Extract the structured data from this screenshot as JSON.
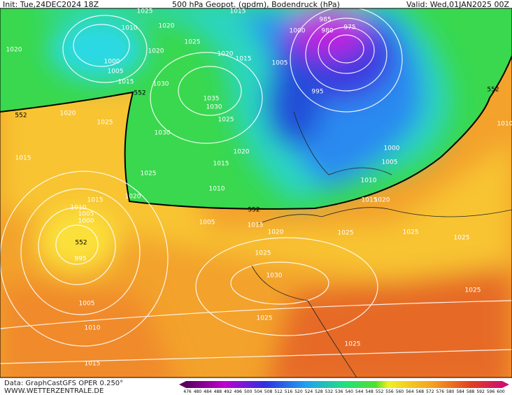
{
  "header": {
    "init": "Init: Tue,24DEC2024 18Z",
    "title": "500 hPa Geopot. (gpdm), Bodendruck (hPa)",
    "valid": "Valid: Wed,01JAN2025 00Z"
  },
  "map": {
    "labels": [
      "1025",
      "1015",
      "1010",
      "1020",
      "1000",
      "985",
      "980",
      "975",
      "1020",
      "1000",
      "1005",
      "1015",
      "1020",
      "1025",
      "1020",
      "1015",
      "1005",
      "1030",
      "1035",
      "1030",
      "1025",
      "995",
      "1020",
      "1025",
      "1030",
      "1020",
      "1015",
      "1025",
      "1000",
      "1005",
      "1010",
      "1015",
      "1010",
      "1020",
      "1015",
      "1015",
      "1020",
      "1010",
      "1005",
      "1000",
      "1005",
      "1015",
      "1020",
      "1025",
      "1025",
      "1025",
      "995",
      "1025",
      "1030",
      "1005",
      "1025",
      "1025",
      "1010",
      "1025",
      "1015",
      "1010",
      "552",
      "552",
      "552",
      "552",
      "552"
    ]
  },
  "colorbar": {
    "labels": [
      "476",
      "480",
      "484",
      "488",
      "492",
      "496",
      "500",
      "504",
      "508",
      "512",
      "516",
      "520",
      "524",
      "528",
      "532",
      "536",
      "540",
      "544",
      "548",
      "552",
      "556",
      "560",
      "564",
      "568",
      "572",
      "576",
      "580",
      "584",
      "588",
      "592",
      "596",
      "600"
    ]
  },
  "footer": {
    "data": "Data: GraphCastGFS OPER 0.250°",
    "site": "WWW.WETTERZENTRALE.DE"
  }
}
